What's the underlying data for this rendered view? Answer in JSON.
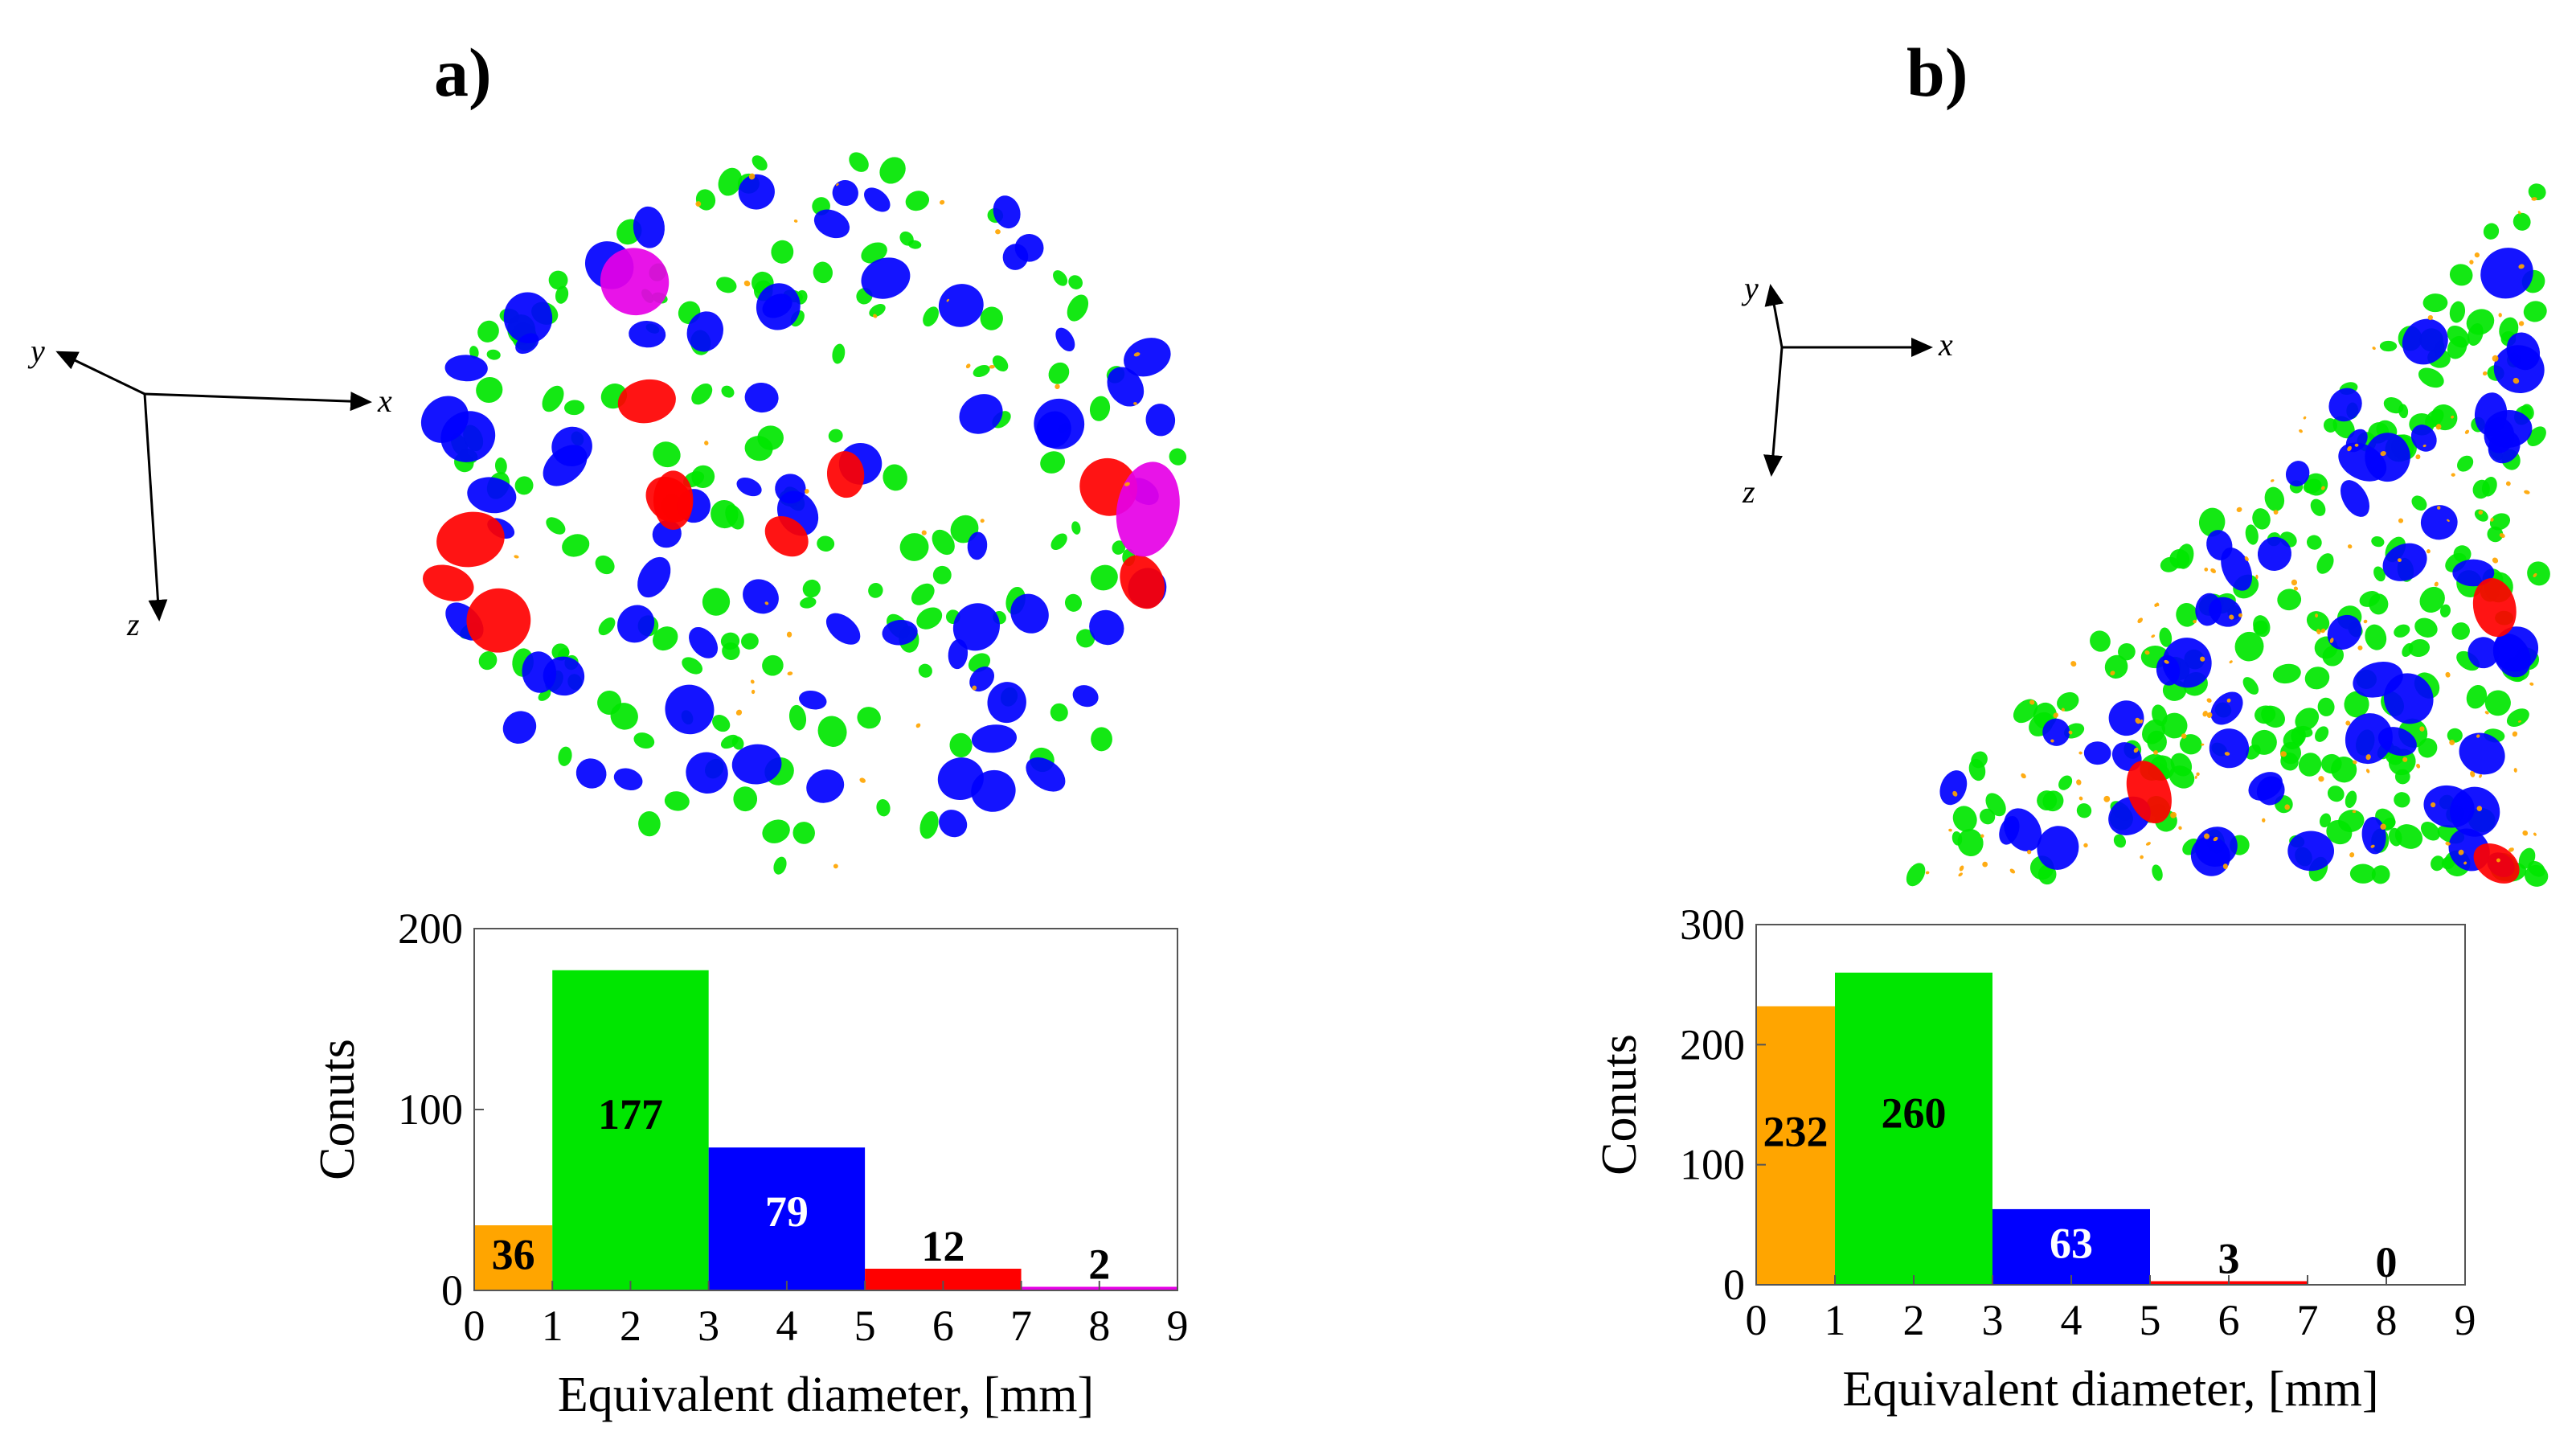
{
  "panels": [
    {
      "label": "a)",
      "axes_triad": {
        "x": "x",
        "y": "y",
        "z": "z"
      },
      "legend_colors": [
        "#ffa500",
        "#00e600",
        "#0000ff",
        "#ff0000",
        "#e600e6"
      ]
    },
    {
      "label": "b)",
      "axes_triad": {
        "x": "x",
        "y": "y",
        "z": "z"
      },
      "legend_colors": [
        "#ffa500",
        "#00e600",
        "#0000ff",
        "#ff0000",
        "#e600e6"
      ]
    }
  ],
  "chart_data": [
    {
      "type": "bar",
      "bins": [
        [
          0,
          1
        ],
        [
          1,
          3
        ],
        [
          3,
          5
        ],
        [
          5,
          7
        ],
        [
          7,
          9
        ]
      ],
      "values": [
        36,
        177,
        79,
        12,
        2
      ],
      "value_labels": [
        "36",
        "177",
        "79",
        "12",
        "2"
      ],
      "colors": [
        "#ffa500",
        "#00e600",
        "#0000ff",
        "#ff0000",
        "#e600e6"
      ],
      "label_colors": [
        "#000000",
        "#000000",
        "#ffffff",
        "#000000",
        "#000000"
      ],
      "xlabel": "Equivalent diameter, [mm]",
      "ylabel": "Conuts",
      "xlim": [
        0,
        9
      ],
      "ylim": [
        0,
        200
      ],
      "xticks": [
        0,
        1,
        2,
        3,
        4,
        5,
        6,
        7,
        8,
        9
      ],
      "yticks": [
        0,
        100,
        200
      ]
    },
    {
      "type": "bar",
      "bins": [
        [
          0,
          1
        ],
        [
          1,
          3
        ],
        [
          3,
          5
        ],
        [
          5,
          7
        ],
        [
          7,
          9
        ]
      ],
      "values": [
        232,
        260,
        63,
        3,
        0
      ],
      "value_labels": [
        "232",
        "260",
        "63",
        "3",
        "0"
      ],
      "colors": [
        "#ffa500",
        "#00e600",
        "#0000ff",
        "#ff0000",
        "#e600e6"
      ],
      "label_colors": [
        "#000000",
        "#000000",
        "#ffffff",
        "#000000",
        "#000000"
      ],
      "xlabel": "Equivalent diameter, [mm]",
      "ylabel": "Conuts",
      "xlim": [
        0,
        9
      ],
      "ylim": [
        0,
        300
      ],
      "xticks": [
        0,
        1,
        2,
        3,
        4,
        5,
        6,
        7,
        8,
        9
      ],
      "yticks": [
        0,
        100,
        200,
        300
      ]
    }
  ]
}
